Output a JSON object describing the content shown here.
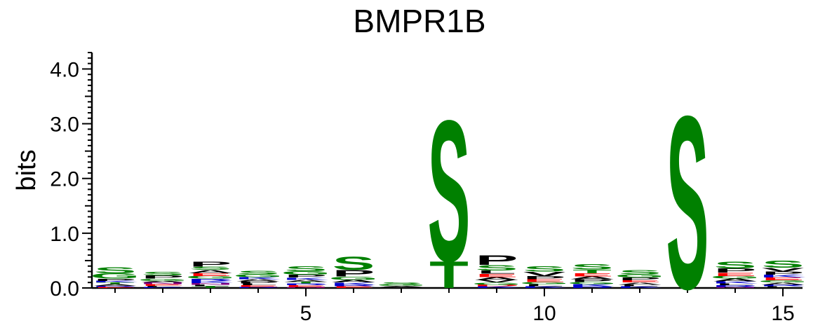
{
  "chart_data": {
    "type": "sequence-logo",
    "title": "BMPR1B",
    "ylabel": "bits",
    "xlabel": "",
    "ylim": [
      0,
      4.3
    ],
    "yticks": [
      {
        "value": 0,
        "label": "0.0"
      },
      {
        "value": 1,
        "label": "1.0"
      },
      {
        "value": 2,
        "label": "2.0"
      },
      {
        "value": 3,
        "label": "3.0"
      },
      {
        "value": 4,
        "label": "4.0"
      }
    ],
    "xticks": [
      {
        "value": 5,
        "label": "5"
      },
      {
        "value": 10,
        "label": "10"
      },
      {
        "value": 15,
        "label": "15"
      }
    ],
    "colors": {
      "S": "#008000",
      "T": "#008000",
      "G": "#008000",
      "C": "#008000",
      "Y": "#008000",
      "P": "#000000",
      "A": "#000000",
      "V": "#000000",
      "L": "#000000",
      "I": "#000000",
      "M": "#000000",
      "F": "#000000",
      "W": "#000000",
      "K": "#0000cc",
      "R": "#0000cc",
      "H": "#0000cc",
      "D": "#ff0000",
      "E": "#ff0000",
      "N": "#800080",
      "Q": "#800080"
    },
    "positions": [
      {
        "pos": 1,
        "letters": [
          [
            "S",
            0.11
          ],
          [
            "G",
            0.1
          ],
          [
            "P",
            0.04
          ],
          [
            "A",
            0.03
          ],
          [
            "T",
            0.03
          ],
          [
            "K",
            0.03
          ],
          [
            "E",
            0.02
          ],
          [
            "R",
            0.02
          ]
        ]
      },
      {
        "pos": 2,
        "letters": [
          [
            "S",
            0.07
          ],
          [
            "P",
            0.06
          ],
          [
            "G",
            0.04
          ],
          [
            "E",
            0.03
          ],
          [
            "N",
            0.03
          ],
          [
            "A",
            0.03
          ],
          [
            "K",
            0.02
          ],
          [
            "L",
            0.02
          ]
        ]
      },
      {
        "pos": 3,
        "letters": [
          [
            "P",
            0.09
          ],
          [
            "A",
            0.06
          ],
          [
            "S",
            0.06
          ],
          [
            "G",
            0.05
          ],
          [
            "E",
            0.05
          ],
          [
            "K",
            0.04
          ],
          [
            "R",
            0.04
          ],
          [
            "T",
            0.03
          ],
          [
            "L",
            0.03
          ],
          [
            "N",
            0.03
          ]
        ]
      },
      {
        "pos": 4,
        "letters": [
          [
            "S",
            0.07
          ],
          [
            "G",
            0.05
          ],
          [
            "P",
            0.04
          ],
          [
            "A",
            0.04
          ],
          [
            "K",
            0.04
          ],
          [
            "E",
            0.03
          ],
          [
            "L",
            0.03
          ],
          [
            "R",
            0.02
          ]
        ]
      },
      {
        "pos": 5,
        "letters": [
          [
            "S",
            0.09
          ],
          [
            "G",
            0.07
          ],
          [
            "P",
            0.05
          ],
          [
            "A",
            0.04
          ],
          [
            "K",
            0.04
          ],
          [
            "E",
            0.03
          ],
          [
            "R",
            0.03
          ],
          [
            "T",
            0.03
          ],
          [
            "N",
            0.02
          ]
        ]
      },
      {
        "pos": 6,
        "letters": [
          [
            "S",
            0.25
          ],
          [
            "P",
            0.12
          ],
          [
            "G",
            0.06
          ],
          [
            "A",
            0.05
          ],
          [
            "K",
            0.04
          ],
          [
            "E",
            0.03
          ],
          [
            "R",
            0.03
          ]
        ]
      },
      {
        "pos": 7,
        "letters": [
          [
            "G",
            0.03
          ],
          [
            "S",
            0.03
          ],
          [
            "P",
            0.02
          ],
          [
            "A",
            0.02
          ]
        ]
      },
      {
        "pos": 8,
        "letters": [
          [
            "S",
            2.65
          ],
          [
            "T",
            0.5
          ]
        ]
      },
      {
        "pos": 9,
        "letters": [
          [
            "P",
            0.18
          ],
          [
            "S",
            0.1
          ],
          [
            "E",
            0.06
          ],
          [
            "L",
            0.06
          ],
          [
            "V",
            0.05
          ],
          [
            "A",
            0.05
          ],
          [
            "G",
            0.04
          ],
          [
            "K",
            0.03
          ],
          [
            "D",
            0.03
          ]
        ]
      },
      {
        "pos": 10,
        "letters": [
          [
            "S",
            0.1
          ],
          [
            "V",
            0.08
          ],
          [
            "P",
            0.06
          ],
          [
            "E",
            0.05
          ],
          [
            "L",
            0.04
          ],
          [
            "G",
            0.04
          ],
          [
            "K",
            0.03
          ]
        ]
      },
      {
        "pos": 11,
        "letters": [
          [
            "S",
            0.1
          ],
          [
            "T",
            0.07
          ],
          [
            "E",
            0.06
          ],
          [
            "P",
            0.05
          ],
          [
            "A",
            0.05
          ],
          [
            "K",
            0.04
          ],
          [
            "G",
            0.04
          ],
          [
            "R",
            0.03
          ]
        ]
      },
      {
        "pos": 12,
        "letters": [
          [
            "S",
            0.08
          ],
          [
            "G",
            0.06
          ],
          [
            "P",
            0.05
          ],
          [
            "A",
            0.04
          ],
          [
            "E",
            0.04
          ],
          [
            "K",
            0.03
          ],
          [
            "L",
            0.03
          ]
        ]
      },
      {
        "pos": 13,
        "letters": [
          [
            "S",
            3.25
          ]
        ]
      },
      {
        "pos": 14,
        "letters": [
          [
            "S",
            0.13
          ],
          [
            "P",
            0.08
          ],
          [
            "E",
            0.06
          ],
          [
            "A",
            0.05
          ],
          [
            "G",
            0.05
          ],
          [
            "K",
            0.04
          ],
          [
            "R",
            0.03
          ],
          [
            "L",
            0.03
          ],
          [
            "N",
            0.02
          ]
        ]
      },
      {
        "pos": 15,
        "letters": [
          [
            "S",
            0.14
          ],
          [
            "V",
            0.07
          ],
          [
            "P",
            0.06
          ],
          [
            "E",
            0.05
          ],
          [
            "K",
            0.05
          ],
          [
            "A",
            0.04
          ],
          [
            "G",
            0.04
          ],
          [
            "L",
            0.03
          ],
          [
            "R",
            0.03
          ]
        ]
      }
    ]
  }
}
